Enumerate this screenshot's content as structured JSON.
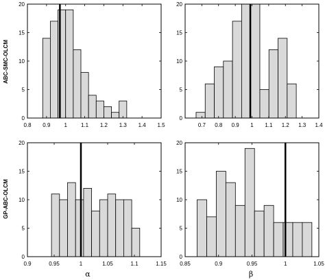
{
  "row_labels": [
    "ABC-SMC-OLCM",
    "GP-ABC-OLCM"
  ],
  "col_labels": [
    "α",
    "β"
  ],
  "chart_data": [
    {
      "type": "bar",
      "row": 0,
      "col": 0,
      "xlim": [
        0.8,
        1.5
      ],
      "ylim": [
        0,
        20
      ],
      "xticks": [
        "0.8",
        "0.9",
        "1",
        "1.1",
        "1.2",
        "1.3",
        "1.4",
        "1.5"
      ],
      "yticks": [
        "0",
        "5",
        "10",
        "15",
        "20"
      ],
      "bin_width": 0.04,
      "bin_starts": [
        0.88,
        0.92,
        0.96,
        1.0,
        1.04,
        1.08,
        1.12,
        1.16,
        1.2,
        1.24,
        1.28
      ],
      "values": [
        14,
        17,
        19,
        19,
        12,
        8,
        4,
        3,
        2,
        1,
        3
      ],
      "vline": 0.97,
      "bar_color": "#d9d9d9"
    },
    {
      "type": "bar",
      "row": 0,
      "col": 1,
      "xlim": [
        0.6,
        1.4
      ],
      "ylim": [
        0,
        20
      ],
      "xticks": [
        "0.7",
        "0.8",
        "0.9",
        "1",
        "1.1",
        "1.2",
        "1.3",
        "1.4"
      ],
      "yticks": [
        "0",
        "5",
        "10",
        "15",
        "20"
      ],
      "bin_width": 0.0545,
      "bin_starts": [
        0.6655,
        0.72,
        0.7745,
        0.829,
        0.8835,
        0.938,
        0.9925,
        1.047,
        1.1015,
        1.156,
        1.2105,
        1.265
      ],
      "values": [
        1,
        6,
        9,
        10,
        17,
        20,
        20,
        5,
        12,
        14,
        6,
        0
      ],
      "vline": 0.99,
      "bar_color": "#d9d9d9"
    },
    {
      "type": "bar",
      "row": 1,
      "col": 0,
      "xlim": [
        0.9,
        1.15
      ],
      "ylim": [
        0,
        20
      ],
      "xticks": [
        "0.9",
        "0.95",
        "1",
        "1.05",
        "1.1",
        "1.15"
      ],
      "yticks": [
        "0",
        "5",
        "10",
        "15",
        "20"
      ],
      "bin_width": 0.015,
      "bin_starts": [
        0.945,
        0.96,
        0.975,
        0.99,
        1.005,
        1.02,
        1.035,
        1.05,
        1.065,
        1.08,
        1.095,
        1.11,
        1.125
      ],
      "values": [
        11,
        10,
        13,
        10,
        12,
        8,
        10,
        11,
        10,
        10,
        5,
        0,
        0
      ],
      "vline": 1.0,
      "bar_color": "#d9d9d9"
    },
    {
      "type": "bar",
      "row": 1,
      "col": 1,
      "xlim": [
        0.85,
        1.05
      ],
      "ylim": [
        0,
        20
      ],
      "xticks": [
        "0.85",
        "0.9",
        "0.95",
        "1",
        "1.05"
      ],
      "yticks": [
        "0",
        "5",
        "10",
        "15",
        "20"
      ],
      "bin_width": 0.0143,
      "bin_starts": [
        0.868,
        0.8823,
        0.8966,
        0.9109,
        0.9252,
        0.9395,
        0.9538,
        0.9681,
        0.9824,
        0.9967,
        1.011,
        1.0253,
        1.0396
      ],
      "values": [
        10,
        7,
        15,
        13,
        9,
        19,
        8,
        9,
        6,
        6,
        6,
        6,
        0
      ],
      "vline": 1.0,
      "bar_color": "#d9d9d9"
    }
  ]
}
